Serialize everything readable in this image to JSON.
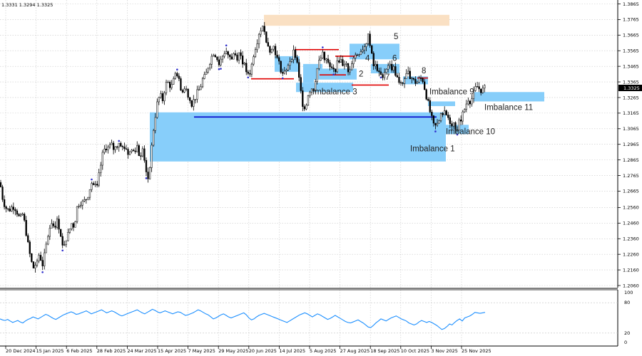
{
  "header": {
    "ohlc": "1.3331 1.3294 1.3325"
  },
  "chart_data": {
    "type": "candlestick",
    "price_axis": {
      "min": 1.206,
      "max": 1.3865,
      "ticks": [
        "1.3865",
        "1.3765",
        "1.3665",
        "1.3565",
        "1.3465",
        "1.3365",
        "1.3265",
        "1.3165",
        "1.3065",
        "1.2965",
        "1.2865",
        "1.2765",
        "1.2665",
        "1.2560",
        "1.2460",
        "1.2360",
        "1.2260",
        "1.2160",
        "1.2060"
      ],
      "current_price": "1.3325"
    },
    "date_axis": {
      "labels": [
        "20 Dec 2024",
        "15 Jan 2025",
        "6 Feb 2025",
        "28 Feb 2025",
        "24 Mar 2025",
        "15 Apr 2025",
        "7 May 2025",
        "29 May 2025",
        "20 Jun 2025",
        "14 Jul 2025",
        "5 Aug 2025",
        "27 Aug 2025",
        "18 Sep 2025",
        "10 Oct 2025",
        "3 Nov 2025",
        "25 Nov 2025"
      ]
    },
    "price_path": [
      [
        0,
        1.272
      ],
      [
        4,
        1.261
      ],
      [
        8,
        1.256
      ],
      [
        12,
        1.254
      ],
      [
        16,
        1.256
      ],
      [
        20,
        1.257
      ],
      [
        24,
        1.253
      ],
      [
        28,
        1.248
      ],
      [
        32,
        1.252
      ],
      [
        36,
        1.242
      ],
      [
        40,
        1.23
      ],
      [
        44,
        1.221
      ],
      [
        48,
        1.216
      ],
      [
        52,
        1.222
      ],
      [
        56,
        1.225
      ],
      [
        60,
        1.219
      ],
      [
        64,
        1.23
      ],
      [
        68,
        1.24
      ],
      [
        72,
        1.247
      ],
      [
        76,
        1.244
      ],
      [
        80,
        1.247
      ],
      [
        84,
        1.242
      ],
      [
        88,
        1.23
      ],
      [
        92,
        1.236
      ],
      [
        96,
        1.239
      ],
      [
        100,
        1.246
      ],
      [
        104,
        1.244
      ],
      [
        108,
        1.256
      ],
      [
        112,
        1.26
      ],
      [
        116,
        1.259
      ],
      [
        120,
        1.261
      ],
      [
        124,
        1.265
      ],
      [
        128,
        1.272
      ],
      [
        132,
        1.27
      ],
      [
        136,
        1.268
      ],
      [
        140,
        1.28
      ],
      [
        144,
        1.29
      ],
      [
        148,
        1.295
      ],
      [
        152,
        1.294
      ],
      [
        156,
        1.296
      ],
      [
        160,
        1.293
      ],
      [
        164,
        1.296
      ],
      [
        168,
        1.299
      ],
      [
        172,
        1.294
      ],
      [
        176,
        1.295
      ],
      [
        180,
        1.29
      ],
      [
        184,
        1.293
      ],
      [
        188,
        1.292
      ],
      [
        192,
        1.296
      ],
      [
        196,
        1.288
      ],
      [
        200,
        1.296
      ],
      [
        204,
        1.282
      ],
      [
        208,
        1.274
      ],
      [
        212,
        1.292
      ],
      [
        216,
        1.31
      ],
      [
        220,
        1.322
      ],
      [
        224,
        1.328
      ],
      [
        228,
        1.325
      ],
      [
        232,
        1.335
      ],
      [
        236,
        1.336
      ],
      [
        240,
        1.333
      ],
      [
        244,
        1.338
      ],
      [
        248,
        1.343
      ],
      [
        252,
        1.335
      ],
      [
        256,
        1.33
      ],
      [
        260,
        1.333
      ],
      [
        264,
        1.328
      ],
      [
        268,
        1.322
      ],
      [
        272,
        1.325
      ],
      [
        276,
        1.329
      ],
      [
        280,
        1.332
      ],
      [
        284,
        1.338
      ],
      [
        288,
        1.34
      ],
      [
        292,
        1.347
      ],
      [
        296,
        1.352
      ],
      [
        300,
        1.356
      ],
      [
        304,
        1.352
      ],
      [
        308,
        1.347
      ],
      [
        312,
        1.353
      ],
      [
        316,
        1.357
      ],
      [
        320,
        1.354
      ],
      [
        324,
        1.35
      ],
      [
        328,
        1.356
      ],
      [
        332,
        1.352
      ],
      [
        336,
        1.356
      ],
      [
        340,
        1.35
      ],
      [
        344,
        1.345
      ],
      [
        348,
        1.34
      ],
      [
        352,
        1.345
      ],
      [
        356,
        1.356
      ],
      [
        360,
        1.362
      ],
      [
        364,
        1.37
      ],
      [
        368,
        1.371
      ],
      [
        372,
        1.366
      ],
      [
        376,
        1.36
      ],
      [
        380,
        1.356
      ],
      [
        384,
        1.36
      ],
      [
        388,
        1.352
      ],
      [
        392,
        1.347
      ],
      [
        396,
        1.342
      ],
      [
        400,
        1.341
      ],
      [
        404,
        1.348
      ],
      [
        408,
        1.352
      ],
      [
        412,
        1.356
      ],
      [
        416,
        1.35
      ],
      [
        420,
        1.335
      ],
      [
        424,
        1.323
      ],
      [
        428,
        1.32
      ],
      [
        432,
        1.329
      ],
      [
        436,
        1.333
      ],
      [
        440,
        1.332
      ],
      [
        444,
        1.344
      ],
      [
        448,
        1.35
      ],
      [
        452,
        1.354
      ],
      [
        456,
        1.352
      ],
      [
        460,
        1.348
      ],
      [
        464,
        1.344
      ],
      [
        468,
        1.343
      ],
      [
        472,
        1.347
      ],
      [
        476,
        1.352
      ],
      [
        480,
        1.348
      ],
      [
        484,
        1.35
      ],
      [
        488,
        1.342
      ],
      [
        492,
        1.348
      ],
      [
        496,
        1.353
      ],
      [
        500,
        1.354
      ],
      [
        504,
        1.356
      ],
      [
        508,
        1.358
      ],
      [
        512,
        1.36
      ],
      [
        516,
        1.366
      ],
      [
        520,
        1.356
      ],
      [
        524,
        1.346
      ],
      [
        528,
        1.347
      ],
      [
        532,
        1.34
      ],
      [
        536,
        1.341
      ],
      [
        540,
        1.344
      ],
      [
        544,
        1.348
      ],
      [
        548,
        1.346
      ],
      [
        552,
        1.345
      ],
      [
        556,
        1.34
      ],
      [
        560,
        1.334
      ],
      [
        564,
        1.335
      ],
      [
        568,
        1.34
      ],
      [
        572,
        1.342
      ],
      [
        576,
        1.34
      ],
      [
        580,
        1.337
      ],
      [
        584,
        1.336
      ],
      [
        588,
        1.338
      ],
      [
        592,
        1.339
      ],
      [
        596,
        1.331
      ],
      [
        600,
        1.323
      ],
      [
        604,
        1.315
      ],
      [
        608,
        1.308
      ],
      [
        612,
        1.308
      ],
      [
        616,
        1.312
      ],
      [
        620,
        1.317
      ],
      [
        624,
        1.316
      ],
      [
        628,
        1.314
      ],
      [
        632,
        1.31
      ],
      [
        636,
        1.31
      ],
      [
        640,
        1.306
      ],
      [
        644,
        1.311
      ],
      [
        648,
        1.315
      ],
      [
        652,
        1.32
      ],
      [
        656,
        1.326
      ],
      [
        660,
        1.324
      ],
      [
        664,
        1.329
      ],
      [
        668,
        1.334
      ],
      [
        672,
        1.332
      ],
      [
        676,
        1.331
      ],
      [
        680,
        1.3325
      ]
    ],
    "oscillator": {
      "type": "line",
      "scale_labels": [
        "100",
        "80",
        "20",
        "0"
      ],
      "values": [
        48,
        46,
        45,
        47,
        44,
        41,
        43,
        45,
        42,
        40,
        44,
        47,
        49,
        52,
        50,
        48,
        51,
        54,
        57,
        55,
        52,
        49,
        47,
        50,
        53,
        56,
        58,
        60,
        62,
        60,
        57,
        58,
        60,
        62,
        64,
        61,
        58,
        60,
        62,
        64,
        66,
        63,
        60,
        62,
        64,
        62,
        59,
        56,
        54,
        56,
        58,
        60,
        62,
        64,
        66,
        63,
        60,
        58,
        61,
        64,
        67,
        65,
        62,
        60,
        62,
        64,
        62,
        60,
        58,
        60,
        62,
        61,
        58,
        55,
        56,
        58,
        60,
        63,
        66,
        64,
        61,
        58,
        56,
        52,
        48,
        50,
        53,
        56,
        58,
        55,
        52,
        50,
        52,
        54,
        56,
        58,
        60,
        56,
        50,
        46,
        48,
        52,
        55,
        57,
        59,
        57,
        55,
        53,
        51,
        49,
        47,
        45,
        43,
        41,
        44,
        47,
        50,
        53,
        56,
        58,
        60,
        58,
        55,
        52,
        55,
        58,
        56,
        53,
        50,
        47,
        49,
        52,
        55,
        52,
        49,
        46,
        43,
        41,
        40,
        42,
        44,
        46,
        43,
        40,
        36,
        32,
        31,
        35,
        40,
        44,
        48,
        46,
        44,
        47,
        50,
        52,
        54,
        51,
        48,
        46,
        44,
        40,
        38,
        36,
        38,
        42,
        45,
        43,
        41,
        43,
        41,
        38,
        35,
        31,
        27,
        29,
        33,
        38,
        36,
        41,
        45,
        48,
        44,
        50,
        52,
        54,
        57,
        61,
        60,
        59,
        60,
        61
      ]
    },
    "zones": [
      {
        "label": "Imbalance 1",
        "x1": 210,
        "x2": 625,
        "top": 1.317,
        "bottom": 1.2855
      },
      {
        "label": "Imbalance 3",
        "x1": 415,
        "x2": 495,
        "top": 1.336,
        "bottom": 1.33
      },
      {
        "label": "Imbalance 9",
        "x1": 600,
        "x2": 638,
        "top": 1.324,
        "bottom": 1.321
      },
      {
        "label": "Imbalance 10",
        "x1": 622,
        "x2": 657,
        "top": 1.309,
        "bottom": 1.303
      },
      {
        "label": "Imbalance 11",
        "x1": 664,
        "x2": 763,
        "top": 1.33,
        "bottom": 1.324
      },
      {
        "label": "",
        "x1": 385,
        "x2": 420,
        "top": 1.353,
        "bottom": 1.343
      },
      {
        "label": "",
        "x1": 425,
        "x2": 452,
        "top": 1.348,
        "bottom": 1.342
      },
      {
        "label": "",
        "x1": 437,
        "x2": 500,
        "top": 1.345,
        "bottom": 1.338
      },
      {
        "label": "",
        "x1": 490,
        "x2": 560,
        "top": 1.361,
        "bottom": 1.351
      },
      {
        "label": "",
        "x1": 520,
        "x2": 560,
        "top": 1.348,
        "bottom": 1.342
      },
      {
        "label": "",
        "x1": 565,
        "x2": 600,
        "top": 1.34,
        "bottom": 1.335
      },
      {
        "label": "",
        "x1": 425,
        "x2": 440,
        "top": 1.342,
        "bottom": 1.336
      }
    ],
    "supply_zone": {
      "x1": 370,
      "x2": 630,
      "top": 1.3795,
      "bottom": 1.3725
    },
    "levels": [
      {
        "color": "#e00000",
        "x1": 352,
        "x2": 412,
        "price": 1.3385
      },
      {
        "color": "#e00000",
        "x1": 413,
        "x2": 475,
        "price": 1.3572
      },
      {
        "color": "#e00000",
        "x1": 448,
        "x2": 485,
        "price": 1.341
      },
      {
        "color": "#e00000",
        "x1": 470,
        "x2": 500,
        "price": 1.353
      },
      {
        "color": "#e00000",
        "x1": 493,
        "x2": 545,
        "price": 1.3345
      },
      {
        "color": "#e00000",
        "x1": 585,
        "x2": 600,
        "price": 1.339
      },
      {
        "color": "#0000cc",
        "x1": 272,
        "x2": 612,
        "price": 1.314
      }
    ],
    "annotations": [
      {
        "text": "5",
        "x": 552,
        "price": 1.364
      },
      {
        "text": "6",
        "x": 550,
        "price": 1.35
      },
      {
        "text": "4",
        "x": 512,
        "price": 1.35
      },
      {
        "text": "2",
        "x": 503,
        "price": 1.34
      },
      {
        "text": "7",
        "x": 540,
        "price": 1.338
      },
      {
        "text": "8",
        "x": 591,
        "price": 1.342
      },
      {
        "text": "Imbalance 3",
        "x": 438,
        "price": 1.3285
      },
      {
        "text": "Imbalance 9",
        "x": 602,
        "price": 1.3285
      },
      {
        "text": "Imbalance 11",
        "x": 679,
        "price": 1.3185
      },
      {
        "text": "Imbalance 10",
        "x": 625,
        "price": 1.303
      },
      {
        "text": "Imbalance 1",
        "x": 575,
        "price": 1.292
      }
    ]
  }
}
